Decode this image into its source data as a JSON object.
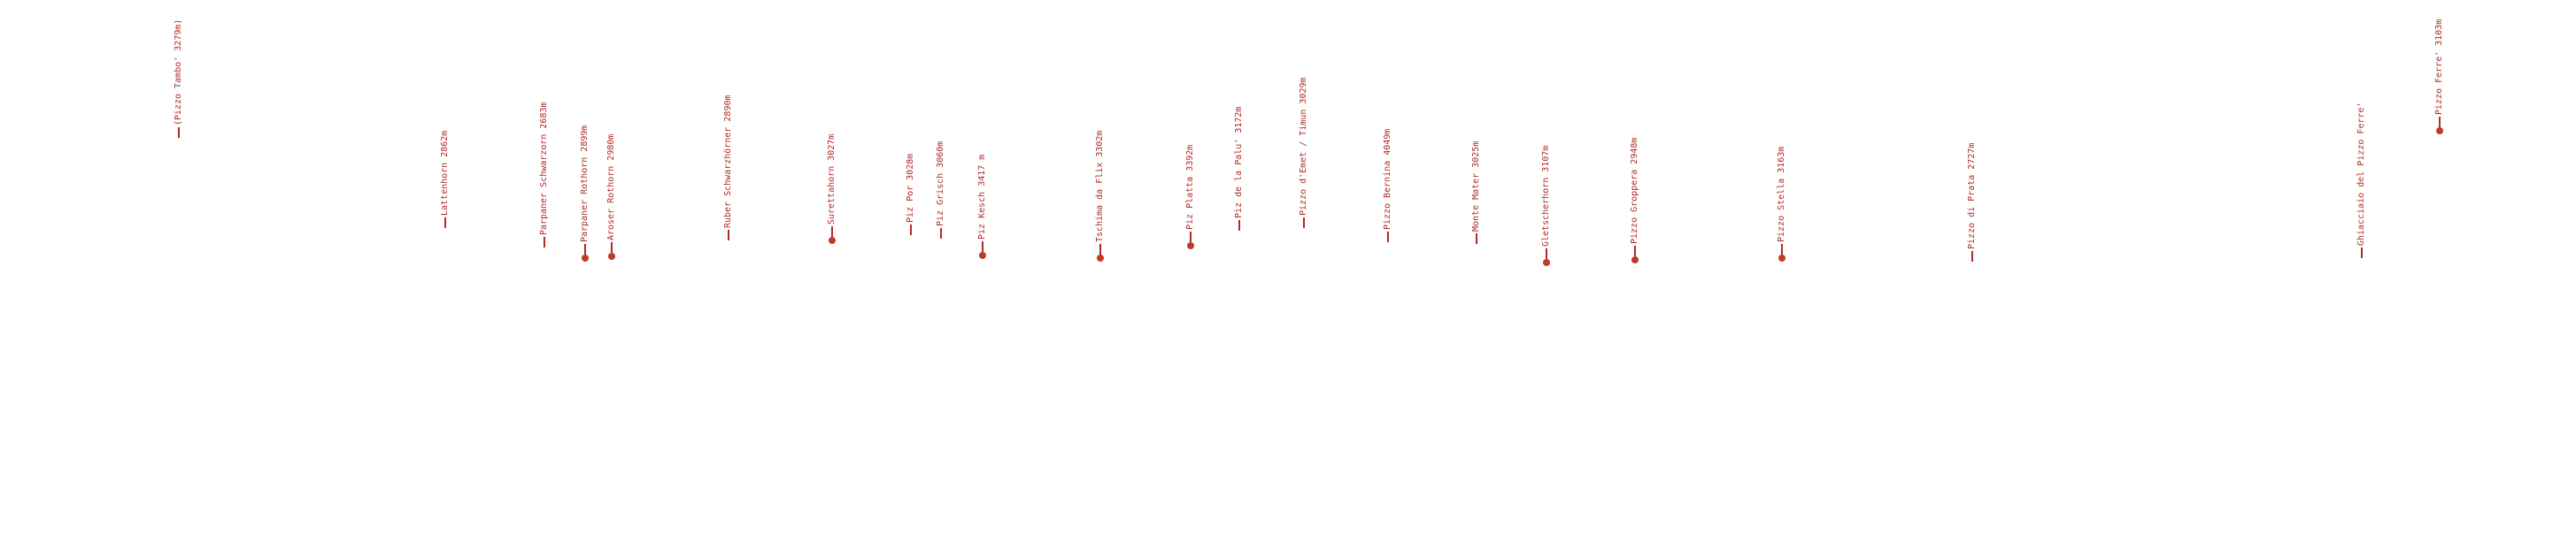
{
  "colors": {
    "label": "#b02a2a",
    "marker": "#c0392b",
    "background": "#ffffff"
  },
  "peaks": [
    {
      "label": "(Pizzo Tambo' 3279m)",
      "marker": "none"
    },
    {
      "label": "Lattenhorn 2862m",
      "marker": "none"
    },
    {
      "label": "Parpaner Schwarzorn 2683m",
      "marker": "none"
    },
    {
      "label": "Parpaner Rothorn 2899m",
      "marker": "dot"
    },
    {
      "label": "Aroser Rothorn 2980m",
      "marker": "dot"
    },
    {
      "label": "Ruber Schwarzhörner 2890m",
      "marker": "none"
    },
    {
      "label": "Surettahorn 3027m",
      "marker": "dot"
    },
    {
      "label": "Piz Por 3028m",
      "marker": "none"
    },
    {
      "label": "Piz Grisch 3060m",
      "marker": "none"
    },
    {
      "label": "Piz Kesch 3417 m",
      "marker": "dot"
    },
    {
      "label": "Tschima da Flix 3302m",
      "marker": "dot"
    },
    {
      "label": "Piz Platta 3392m",
      "marker": "dot"
    },
    {
      "label": "Piz de la Palu' 3172m",
      "marker": "none"
    },
    {
      "label": "Pizzo d'Emet / Timun 3029m",
      "marker": "none"
    },
    {
      "label": "Pizzo Bernina 4049m",
      "marker": "none"
    },
    {
      "label": "Monte Mater 3025m",
      "marker": "none"
    },
    {
      "label": "Gletscherhorn 3107m",
      "marker": "dot"
    },
    {
      "label": "Pizzo Groppera 2948m",
      "marker": "dot"
    },
    {
      "label": "Pizzo Stella 3163m",
      "marker": "dot"
    },
    {
      "label": "Pizzo di Prata 2727m",
      "marker": "none"
    },
    {
      "label": "Ghiacciaio del Pizzo Ferre'",
      "marker": "none"
    },
    {
      "label": "Pizzo Ferre' 3103m",
      "marker": "dot"
    }
  ]
}
